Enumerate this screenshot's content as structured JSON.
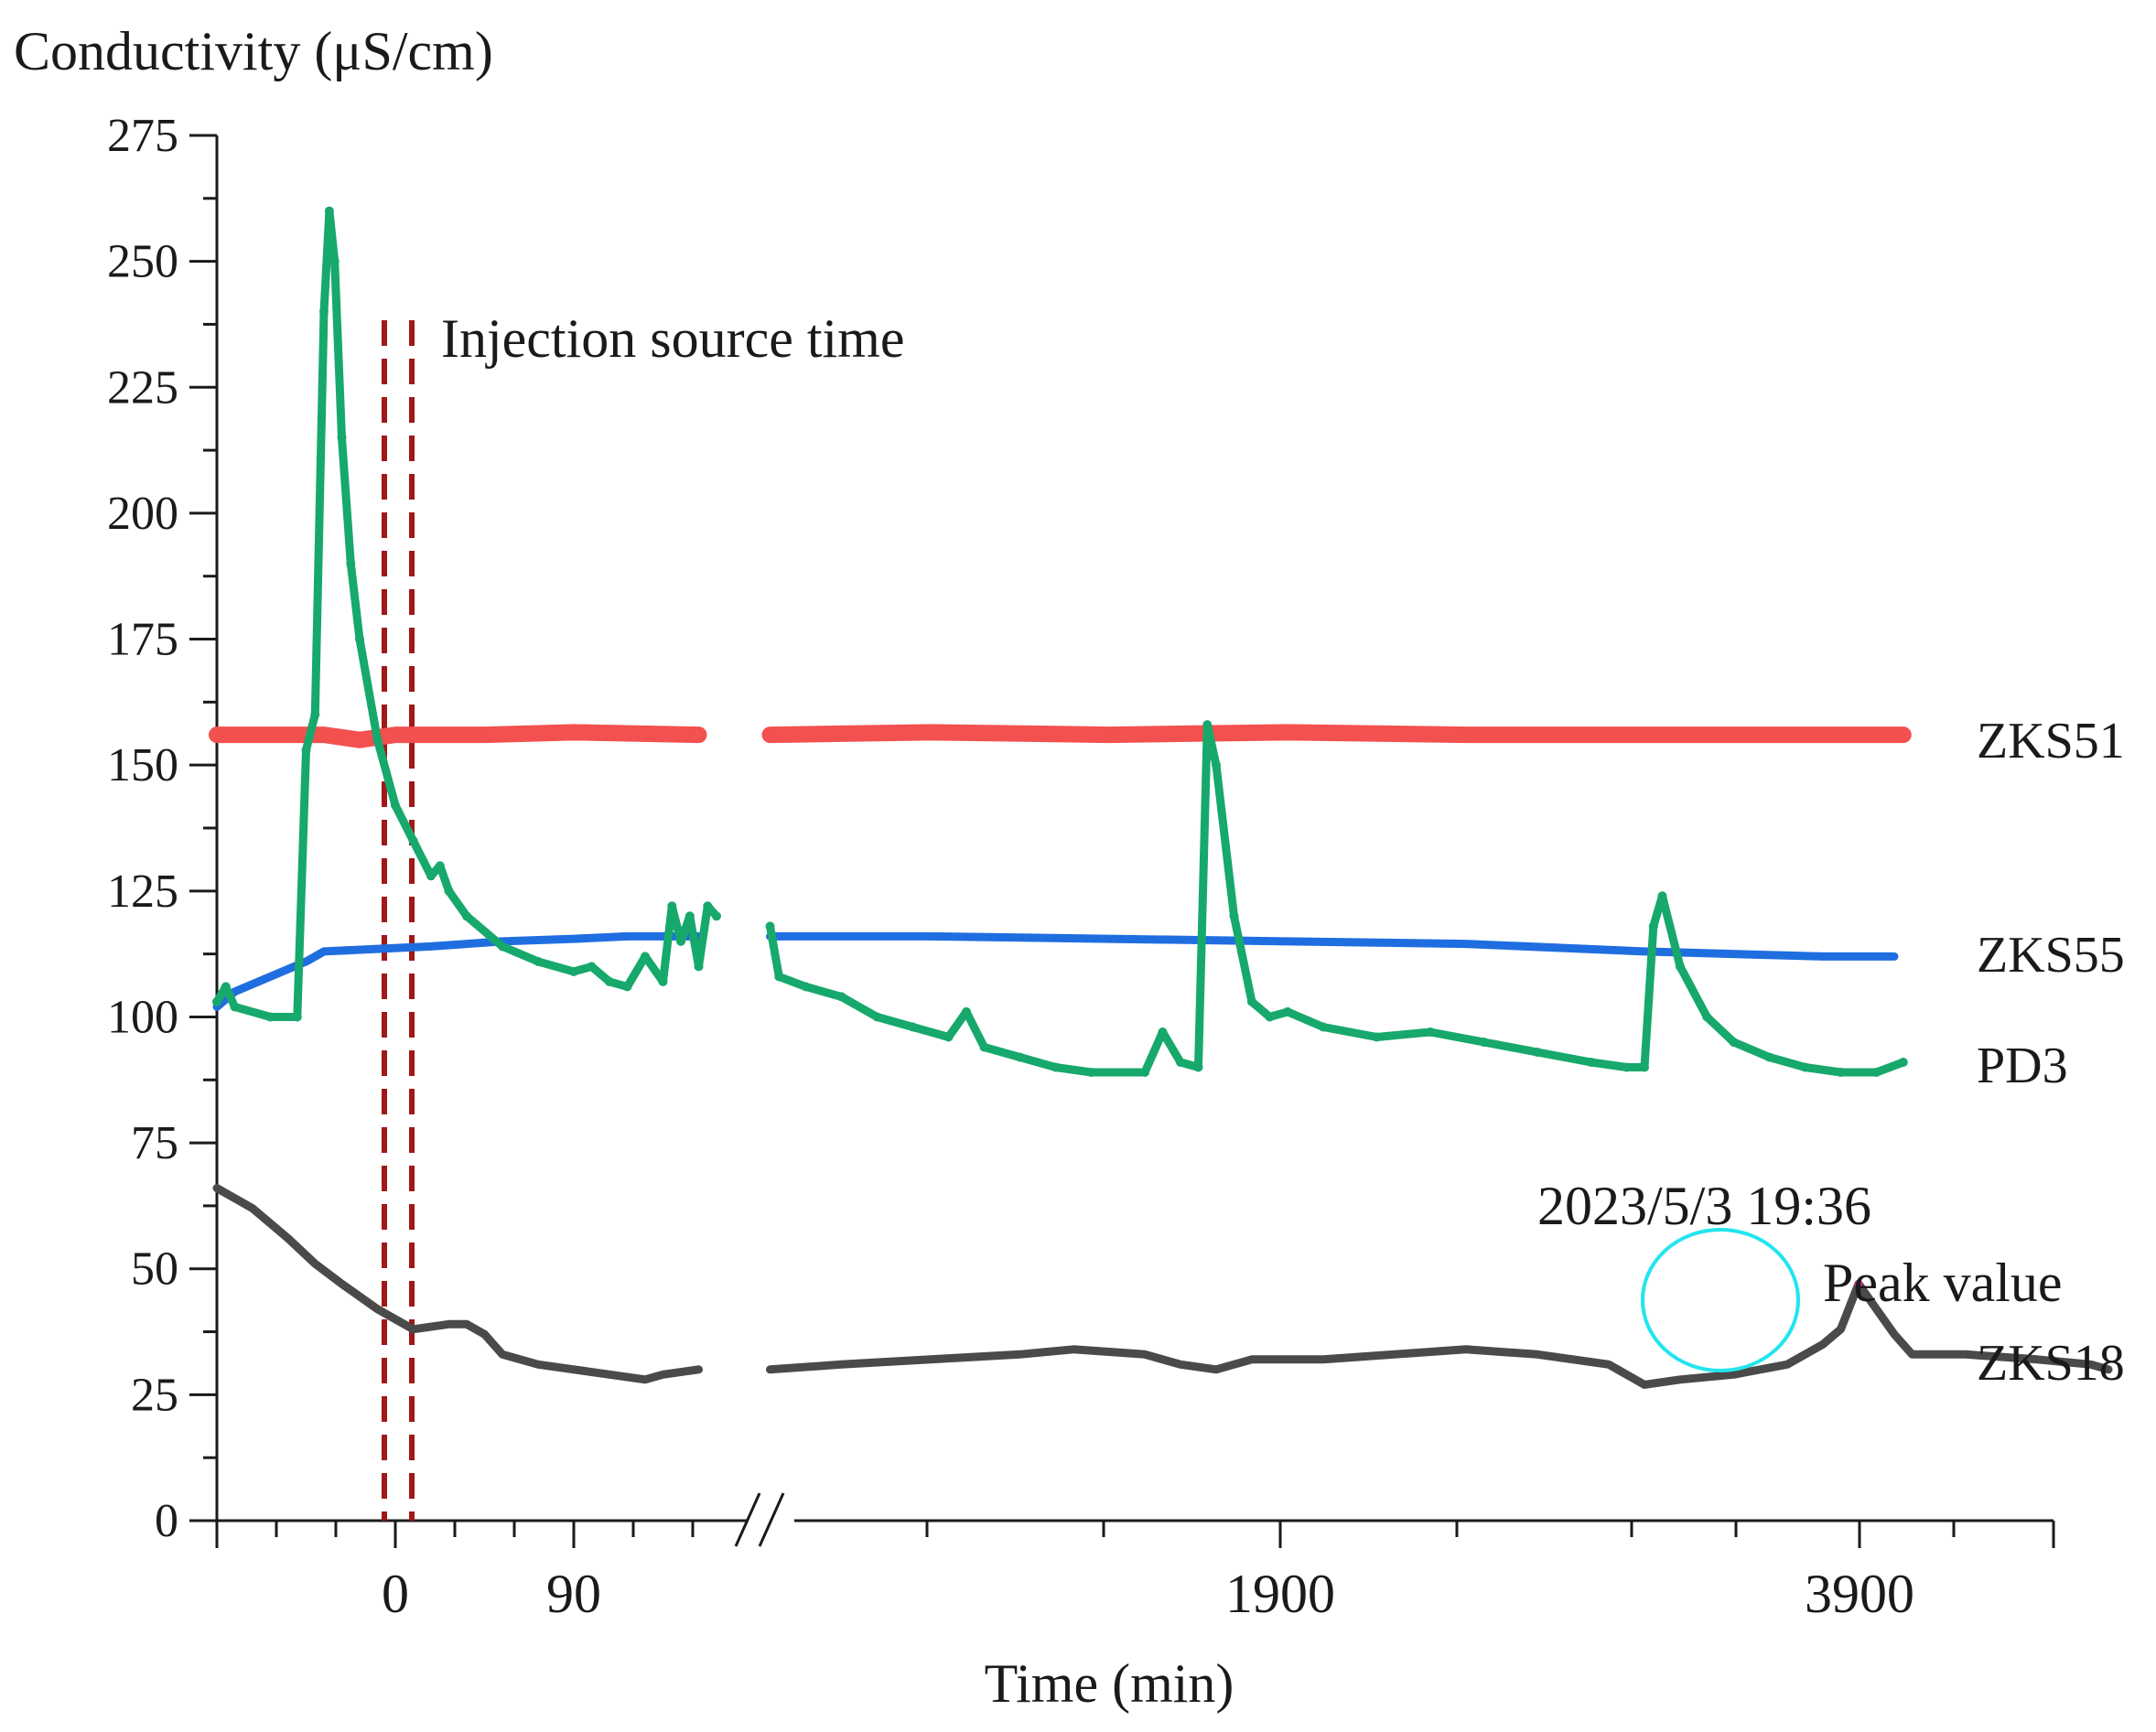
{
  "chart_data": {
    "type": "line",
    "ylabel": "Conductivity (μS/cm)",
    "xlabel": "Time (min)",
    "ylim": [
      0,
      275
    ],
    "yticks": [
      0,
      25,
      50,
      75,
      100,
      125,
      150,
      175,
      200,
      225,
      250,
      275
    ],
    "x_tick_labels": [
      "0",
      "90",
      "1900",
      "3900"
    ],
    "x_break": true,
    "injection_label": "Injection source time",
    "annotation": {
      "date": "2023/5/3 19:36",
      "peak": "Peak value",
      "highlight_color": "#22e5ee",
      "value": 47
    },
    "series": [
      {
        "name": "ZKS51",
        "color": "#f2514f",
        "segments": [
          [
            [
              0,
              156
            ],
            [
              0.3,
              156
            ],
            [
              0.6,
              156
            ],
            [
              0.8,
              155
            ],
            [
              1,
              156
            ],
            [
              1.5,
              156
            ],
            [
              2,
              156.5
            ],
            [
              2.7,
              156
            ]
          ],
          [
            [
              3.1,
              156
            ],
            [
              4,
              156.5
            ],
            [
              5,
              156
            ],
            [
              6,
              156.5
            ],
            [
              7,
              156
            ],
            [
              8,
              156
            ],
            [
              9,
              156
            ],
            [
              9.45,
              156
            ]
          ]
        ]
      },
      {
        "name": "ZKS55",
        "color": "#1f6ee0",
        "segments": [
          [
            [
              0,
              102
            ],
            [
              0.1,
              105
            ],
            [
              0.3,
              108
            ],
            [
              0.5,
              111
            ],
            [
              0.6,
              113
            ],
            [
              0.9,
              113.5
            ],
            [
              1.2,
              114
            ],
            [
              1.6,
              115
            ],
            [
              2,
              115.5
            ],
            [
              2.3,
              116
            ],
            [
              2.7,
              116
            ]
          ],
          [
            [
              3.1,
              116
            ],
            [
              4,
              116
            ],
            [
              5,
              115.5
            ],
            [
              6,
              115
            ],
            [
              7,
              114.5
            ],
            [
              8,
              113
            ],
            [
              9,
              112
            ],
            [
              9.4,
              112
            ]
          ]
        ]
      },
      {
        "name": "PD3",
        "color": "#17a86c",
        "segments": [
          [
            [
              0,
              103
            ],
            [
              0.05,
              106
            ],
            [
              0.1,
              102
            ],
            [
              0.3,
              100
            ],
            [
              0.45,
              100
            ],
            [
              0.5,
              153
            ],
            [
              0.55,
              160
            ],
            [
              0.6,
              240
            ],
            [
              0.63,
              260
            ],
            [
              0.66,
              250
            ],
            [
              0.7,
              215
            ],
            [
              0.75,
              190
            ],
            [
              0.8,
              175
            ],
            [
              0.9,
              155
            ],
            [
              1.0,
              142
            ],
            [
              1.1,
              135
            ],
            [
              1.2,
              128
            ],
            [
              1.25,
              130
            ],
            [
              1.3,
              125
            ],
            [
              1.4,
              120
            ],
            [
              1.6,
              114
            ],
            [
              1.8,
              111
            ],
            [
              2.0,
              109
            ],
            [
              2.1,
              110
            ],
            [
              2.2,
              107
            ],
            [
              2.3,
              106
            ],
            [
              2.4,
              112
            ],
            [
              2.5,
              107
            ],
            [
              2.55,
              122
            ],
            [
              2.6,
              115
            ],
            [
              2.65,
              120
            ],
            [
              2.7,
              110
            ],
            [
              2.75,
              122
            ],
            [
              2.8,
              120
            ]
          ],
          [
            [
              3.1,
              118
            ],
            [
              3.15,
              108
            ],
            [
              3.3,
              106
            ],
            [
              3.5,
              104
            ],
            [
              3.7,
              100
            ],
            [
              3.9,
              98
            ],
            [
              4.1,
              96
            ],
            [
              4.2,
              101
            ],
            [
              4.3,
              94
            ],
            [
              4.5,
              92
            ],
            [
              4.7,
              90
            ],
            [
              4.9,
              89
            ],
            [
              5.2,
              89
            ],
            [
              5.3,
              97
            ],
            [
              5.4,
              91
            ],
            [
              5.5,
              90
            ],
            [
              5.55,
              158
            ],
            [
              5.6,
              150
            ],
            [
              5.7,
              120
            ],
            [
              5.8,
              103
            ],
            [
              5.9,
              100
            ],
            [
              6.0,
              101
            ],
            [
              6.2,
              98
            ],
            [
              6.5,
              96
            ],
            [
              6.8,
              97
            ],
            [
              7.1,
              95
            ],
            [
              7.4,
              93
            ],
            [
              7.7,
              91
            ],
            [
              7.9,
              90
            ],
            [
              8.0,
              90
            ],
            [
              8.05,
              118
            ],
            [
              8.1,
              124
            ],
            [
              8.2,
              110
            ],
            [
              8.35,
              100
            ],
            [
              8.5,
              95
            ],
            [
              8.7,
              92
            ],
            [
              8.9,
              90
            ],
            [
              9.1,
              89
            ],
            [
              9.3,
              89
            ],
            [
              9.45,
              91
            ]
          ]
        ]
      },
      {
        "name": "ZKS18",
        "color": "#4a4a4a",
        "segments": [
          [
            [
              0,
              66
            ],
            [
              0.2,
              62
            ],
            [
              0.4,
              56
            ],
            [
              0.55,
              51
            ],
            [
              0.7,
              47
            ],
            [
              0.9,
              42
            ],
            [
              1.1,
              38
            ],
            [
              1.3,
              39
            ],
            [
              1.4,
              39
            ],
            [
              1.5,
              37
            ],
            [
              1.6,
              33
            ],
            [
              1.8,
              31
            ],
            [
              2.0,
              30
            ],
            [
              2.2,
              29
            ],
            [
              2.4,
              28
            ],
            [
              2.5,
              29
            ],
            [
              2.7,
              30
            ]
          ],
          [
            [
              3.1,
              30
            ],
            [
              3.5,
              31
            ],
            [
              4.0,
              32
            ],
            [
              4.5,
              33
            ],
            [
              4.8,
              34
            ],
            [
              5.2,
              33
            ],
            [
              5.4,
              31
            ],
            [
              5.6,
              30
            ],
            [
              5.8,
              32
            ],
            [
              6.2,
              32
            ],
            [
              6.6,
              33
            ],
            [
              7.0,
              34
            ],
            [
              7.4,
              33
            ],
            [
              7.8,
              31
            ],
            [
              8.0,
              27
            ],
            [
              8.2,
              28
            ],
            [
              8.5,
              29
            ],
            [
              8.8,
              31
            ],
            [
              9.0,
              35
            ],
            [
              9.1,
              38
            ],
            [
              9.2,
              47
            ],
            [
              9.3,
              42
            ],
            [
              9.4,
              37
            ],
            [
              9.5,
              33
            ],
            [
              9.8,
              33
            ],
            [
              10.2,
              32
            ],
            [
              10.5,
              31
            ],
            [
              10.6,
              30
            ]
          ]
        ]
      }
    ]
  }
}
